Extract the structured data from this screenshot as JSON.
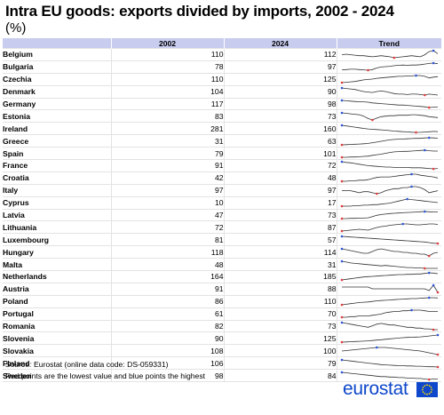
{
  "title": "Intra EU goods: exports divided by imports, 2002 - 2024",
  "subtitle": "(%)",
  "footer": {
    "source_label": "Source:",
    "source_text": "Eurostat (online data code: DS-059331)",
    "note": "Red points are the lowest value and blue points the highest",
    "logo_text": "eurostat"
  },
  "colors": {
    "header_background": "#c8ccef",
    "trend_line": "#333333",
    "lowest_point": "#e03c3c",
    "highest_point": "#2b54d6",
    "logo_blue": "#0e47cb"
  },
  "chart_data": {
    "type": "table",
    "columns": [
      "",
      "2002",
      "2024",
      "Trend"
    ],
    "rows": [
      {
        "country": "Belgium",
        "v2002": 110,
        "v2024": 112,
        "trend": [
          110,
          111,
          110,
          109,
          108,
          108,
          107,
          106,
          107,
          108,
          107,
          106,
          104,
          105,
          106,
          107,
          108,
          107,
          106,
          110,
          116,
          118,
          112
        ]
      },
      {
        "country": "Bulgaria",
        "v2002": 78,
        "v2024": 97,
        "trend": [
          78,
          79,
          80,
          80,
          79,
          78,
          77,
          79,
          84,
          87,
          88,
          89,
          91,
          92,
          93,
          92,
          93,
          93,
          94,
          96,
          98,
          99,
          97
        ]
      },
      {
        "country": "Czechia",
        "v2002": 110,
        "v2024": 125,
        "trend": [
          110,
          111,
          112,
          113,
          115,
          117,
          118,
          119,
          121,
          122,
          123,
          124,
          125,
          126,
          126,
          127,
          127,
          128,
          128,
          126,
          122,
          124,
          125
        ]
      },
      {
        "country": "Denmark",
        "v2002": 104,
        "v2024": 90,
        "trend": [
          104,
          103,
          102,
          101,
          99,
          97,
          96,
          95,
          97,
          98,
          97,
          95,
          93,
          92,
          92,
          91,
          92,
          92,
          91,
          90,
          92,
          91,
          90
        ]
      },
      {
        "country": "Germany",
        "v2002": 117,
        "v2024": 98,
        "trend": [
          117,
          116,
          115,
          114,
          113,
          113,
          112,
          110,
          109,
          108,
          107,
          106,
          105,
          104,
          104,
          103,
          102,
          101,
          100,
          99,
          97,
          98,
          98
        ]
      },
      {
        "country": "Estonia",
        "v2002": 83,
        "v2024": 73,
        "trend": [
          83,
          82,
          81,
          80,
          79,
          76,
          71,
          68,
          72,
          75,
          76,
          77,
          77,
          78,
          78,
          78,
          79,
          79,
          78,
          77,
          75,
          74,
          73
        ]
      },
      {
        "country": "Ireland",
        "v2002": 281,
        "v2024": 160,
        "trend": [
          281,
          270,
          258,
          246,
          234,
          222,
          212,
          205,
          200,
          195,
          188,
          180,
          172,
          166,
          160,
          156,
          150,
          146,
          148,
          152,
          158,
          164,
          160
        ]
      },
      {
        "country": "Greece",
        "v2002": 31,
        "v2024": 63,
        "trend": [
          31,
          32,
          33,
          34,
          35,
          36,
          38,
          41,
          44,
          48,
          52,
          55,
          57,
          58,
          59,
          60,
          61,
          62,
          62,
          64,
          65,
          64,
          63
        ]
      },
      {
        "country": "Spain",
        "v2002": 79,
        "v2024": 101,
        "trend": [
          79,
          79,
          80,
          80,
          81,
          82,
          83,
          86,
          88,
          90,
          93,
          96,
          98,
          99,
          100,
          100,
          101,
          102,
          103,
          104,
          102,
          101,
          101
        ]
      },
      {
        "country": "France",
        "v2002": 91,
        "v2024": 72,
        "trend": [
          91,
          89,
          88,
          86,
          84,
          82,
          80,
          79,
          78,
          77,
          76,
          76,
          75,
          75,
          75,
          75,
          74,
          74,
          74,
          73,
          72,
          71,
          72
        ]
      },
      {
        "country": "Croatia",
        "v2002": 42,
        "v2024": 48,
        "trend": [
          42,
          42,
          43,
          43,
          44,
          44,
          45,
          47,
          49,
          50,
          50,
          50,
          51,
          52,
          53,
          54,
          55,
          55,
          53,
          52,
          51,
          50,
          48
        ]
      },
      {
        "country": "Italy",
        "v2002": 97,
        "v2024": 97,
        "trend": [
          97,
          97,
          97,
          96,
          95,
          96,
          96,
          95,
          94,
          95,
          97,
          98,
          99,
          99,
          100,
          100,
          101,
          101,
          100,
          98,
          95,
          96,
          97
        ]
      },
      {
        "country": "Cyprus",
        "v2002": 10,
        "v2024": 17,
        "trend": [
          10,
          10,
          10,
          11,
          11,
          12,
          12,
          13,
          13,
          14,
          15,
          16,
          18,
          20,
          22,
          24,
          23,
          22,
          21,
          20,
          19,
          18,
          17
        ]
      },
      {
        "country": "Latvia",
        "v2002": 47,
        "v2024": 73,
        "trend": [
          47,
          47,
          48,
          48,
          49,
          49,
          50,
          55,
          60,
          63,
          65,
          67,
          68,
          69,
          70,
          71,
          72,
          73,
          74,
          75,
          74,
          73,
          73
        ]
      },
      {
        "country": "Lithuania",
        "v2002": 72,
        "v2024": 87,
        "trend": [
          72,
          73,
          74,
          75,
          76,
          75,
          74,
          77,
          80,
          82,
          83,
          85,
          86,
          87,
          88,
          88,
          87,
          86,
          86,
          87,
          88,
          88,
          87
        ]
      },
      {
        "country": "Luxembourg",
        "v2002": 81,
        "v2024": 57,
        "trend": [
          81,
          80,
          79,
          78,
          77,
          76,
          75,
          74,
          73,
          72,
          71,
          70,
          69,
          68,
          67,
          66,
          65,
          64,
          63,
          62,
          60,
          58,
          57
        ]
      },
      {
        "country": "Hungary",
        "v2002": 118,
        "v2024": 114,
        "trend": [
          118,
          117,
          116,
          115,
          114,
          113,
          113,
          115,
          117,
          118,
          117,
          116,
          115,
          115,
          114,
          114,
          113,
          113,
          112,
          112,
          110,
          113,
          114
        ]
      },
      {
        "country": "Malta",
        "v2002": 48,
        "v2024": 31,
        "trend": [
          48,
          46,
          44,
          43,
          42,
          41,
          40,
          39,
          38,
          37,
          38,
          37,
          36,
          35,
          34,
          33,
          33,
          32,
          32,
          31,
          31,
          31,
          31
        ]
      },
      {
        "country": "Netherlands",
        "v2002": 164,
        "v2024": 185,
        "trend": [
          164,
          166,
          168,
          170,
          172,
          174,
          175,
          176,
          177,
          178,
          179,
          180,
          181,
          182,
          182,
          183,
          183,
          184,
          184,
          186,
          188,
          187,
          185
        ]
      },
      {
        "country": "Austria",
        "v2002": 91,
        "v2024": 88,
        "trend": [
          91,
          91,
          91,
          91,
          91,
          91,
          91,
          90,
          90,
          90,
          90,
          90,
          90,
          90,
          90,
          90,
          90,
          90,
          90,
          90,
          89,
          92,
          88
        ]
      },
      {
        "country": "Poland",
        "v2002": 86,
        "v2024": 110,
        "trend": [
          86,
          88,
          90,
          92,
          94,
          95,
          96,
          98,
          100,
          101,
          102,
          103,
          104,
          105,
          106,
          107,
          108,
          108,
          109,
          110,
          111,
          111,
          110
        ]
      },
      {
        "country": "Portugal",
        "v2002": 61,
        "v2024": 70,
        "trend": [
          61,
          61,
          62,
          62,
          63,
          63,
          63,
          64,
          65,
          66,
          68,
          69,
          70,
          70,
          71,
          71,
          72,
          72,
          72,
          71,
          70,
          70,
          70
        ]
      },
      {
        "country": "Romania",
        "v2002": 82,
        "v2024": 73,
        "trend": [
          82,
          81,
          80,
          79,
          78,
          77,
          76,
          78,
          80,
          81,
          80,
          79,
          79,
          78,
          77,
          76,
          76,
          75,
          75,
          74,
          74,
          73,
          73
        ]
      },
      {
        "country": "Slovenia",
        "v2002": 90,
        "v2024": 125,
        "trend": [
          90,
          91,
          92,
          93,
          94,
          95,
          96,
          98,
          100,
          102,
          104,
          106,
          108,
          110,
          112,
          113,
          114,
          115,
          116,
          118,
          120,
          123,
          125
        ]
      },
      {
        "country": "Slovakia",
        "v2002": 108,
        "v2024": 100,
        "trend": [
          108,
          109,
          110,
          111,
          112,
          113,
          114,
          115,
          116,
          116,
          116,
          115,
          114,
          113,
          112,
          111,
          110,
          109,
          108,
          106,
          104,
          102,
          100
        ]
      },
      {
        "country": "Finland",
        "v2002": 106,
        "v2024": 79,
        "trend": [
          106,
          104,
          102,
          100,
          98,
          96,
          94,
          92,
          90,
          88,
          87,
          86,
          85,
          84,
          84,
          83,
          83,
          82,
          82,
          81,
          80,
          80,
          79
        ]
      },
      {
        "country": "Sweden",
        "v2002": 98,
        "v2024": 84,
        "trend": [
          98,
          97,
          96,
          95,
          94,
          93,
          92,
          91,
          90,
          89,
          89,
          88,
          88,
          87,
          87,
          86,
          86,
          85,
          85,
          84,
          83,
          84,
          84
        ]
      }
    ]
  }
}
